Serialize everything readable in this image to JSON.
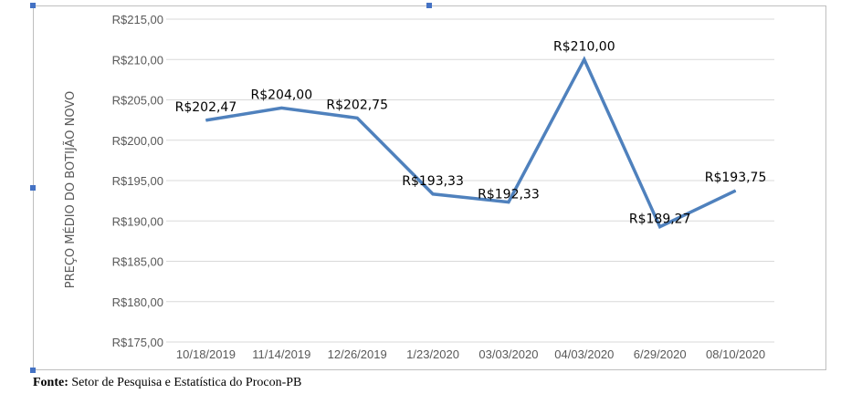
{
  "chart_data": {
    "type": "line",
    "categories": [
      "10/18/2019",
      "11/14/2019",
      "12/26/2019",
      "1/23/2020",
      "03/03/2020",
      "04/03/2020",
      "6/29/2020",
      "08/10/2020"
    ],
    "values": [
      202.47,
      204.0,
      202.75,
      193.33,
      192.33,
      210.0,
      189.27,
      193.75
    ],
    "data_labels": [
      "R$202,47",
      "R$204,00",
      "R$202,75",
      "R$193,33",
      "R$192,33",
      "R$210,00",
      "R$189,27",
      "R$193,75"
    ],
    "ylabel": "PREÇO MÉDIO DO BOTIJÃO NOVO",
    "ylim": [
      175,
      215
    ],
    "yticks": [
      175,
      180,
      185,
      190,
      195,
      200,
      205,
      210,
      215
    ],
    "ytick_labels": [
      "R$175,00",
      "R$180,00",
      "R$185,00",
      "R$190,00",
      "R$195,00",
      "R$200,00",
      "R$205,00",
      "R$210,00",
      "R$215,00"
    ],
    "grid": true,
    "line_color": "#4f81bd",
    "grid_color": "#d9d9d9"
  },
  "source": {
    "prefix": "Fonte:",
    "text": " Setor de Pesquisa e Estatística do Procon-PB"
  }
}
